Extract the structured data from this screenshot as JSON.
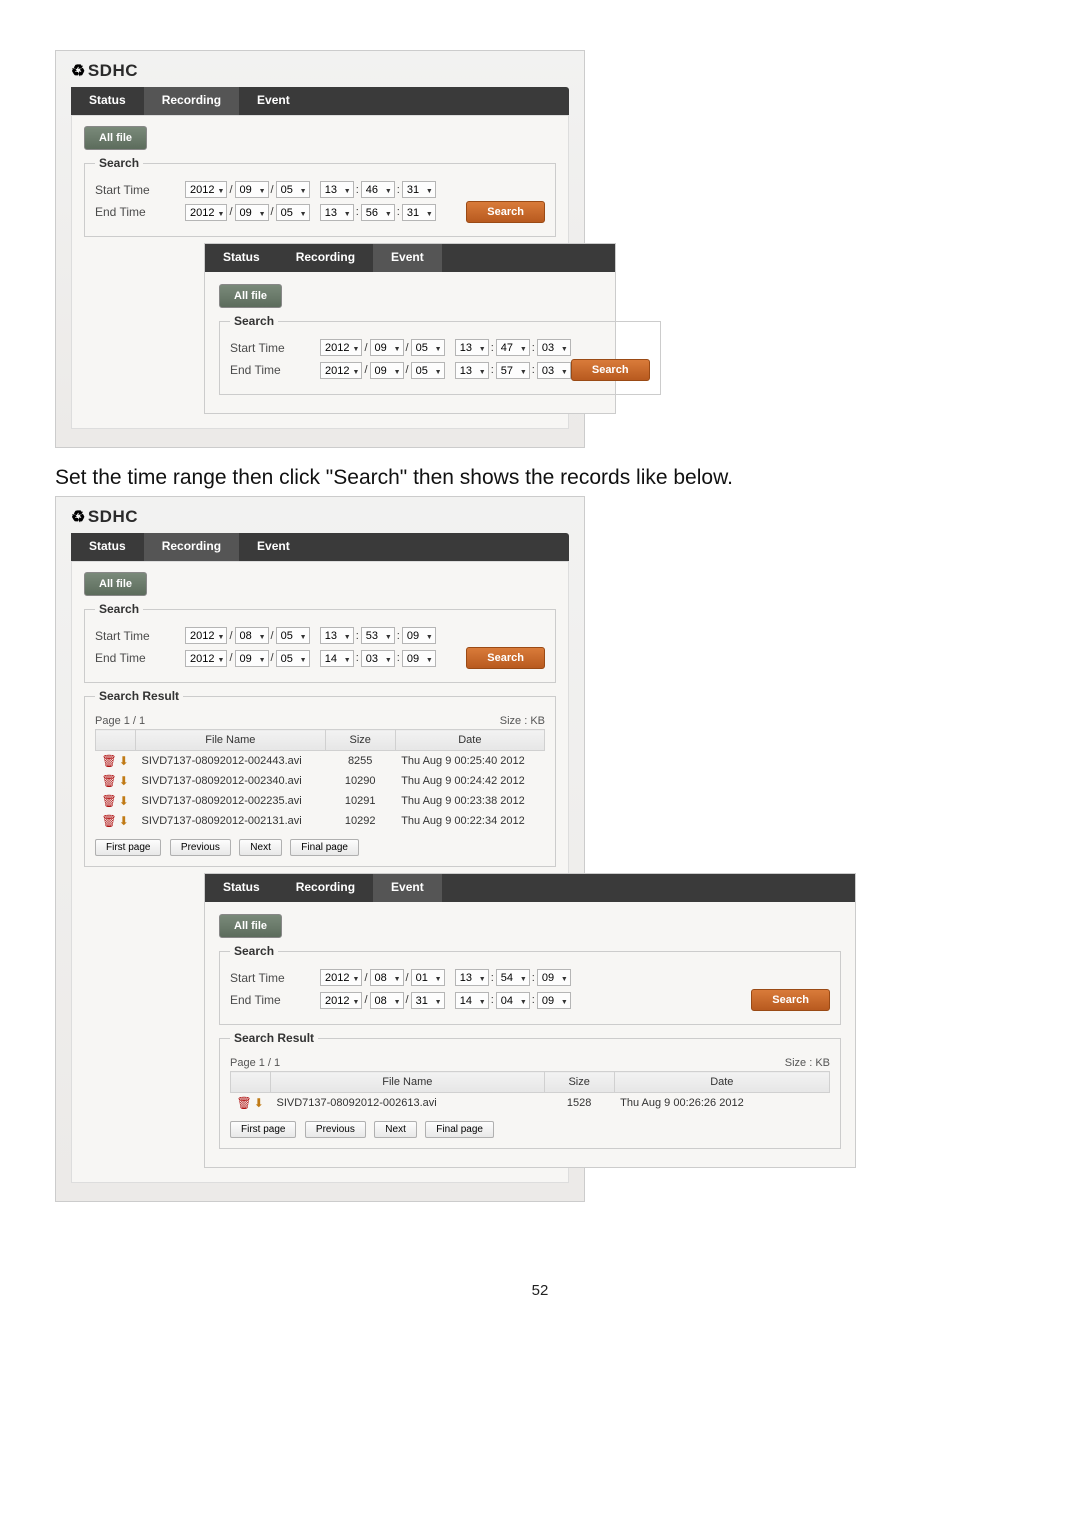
{
  "logo": "SDHC",
  "tabs": {
    "status": "Status",
    "recording": "Recording",
    "event": "Event"
  },
  "allfile_label": "All file",
  "search_legend": "Search",
  "start_label": "Start Time",
  "end_label": "End Time",
  "search_btn": "Search",
  "panel1": {
    "outer_start": {
      "y": "2012",
      "mo": "09",
      "d": "05",
      "h": "13",
      "mi": "46",
      "s": "31"
    },
    "outer_end": {
      "y": "2012",
      "mo": "09",
      "d": "05",
      "h": "13",
      "mi": "56",
      "s": "31"
    },
    "inner_start": {
      "y": "2012",
      "mo": "09",
      "d": "05",
      "h": "13",
      "mi": "47",
      "s": "03"
    },
    "inner_end": {
      "y": "2012",
      "mo": "09",
      "d": "05",
      "h": "13",
      "mi": "57",
      "s": "03"
    }
  },
  "instruction": "Set the time range then click \"Search\" then shows the records like below.",
  "panel2": {
    "outer_start": {
      "y": "2012",
      "mo": "08",
      "d": "05",
      "h": "13",
      "mi": "53",
      "s": "09"
    },
    "outer_end": {
      "y": "2012",
      "mo": "09",
      "d": "05",
      "h": "14",
      "mi": "03",
      "s": "09"
    },
    "inner_start": {
      "y": "2012",
      "mo": "08",
      "d": "01",
      "h": "13",
      "mi": "54",
      "s": "09"
    },
    "inner_end": {
      "y": "2012",
      "mo": "08",
      "d": "31",
      "h": "14",
      "mi": "04",
      "s": "09"
    }
  },
  "result_legend": "Search Result",
  "page_label": "Page 1 / 1",
  "size_label": "Size : KB",
  "cols": {
    "fname": "File Name",
    "size": "Size",
    "date": "Date"
  },
  "rows_outer": [
    {
      "f": "SIVD7137-08092012-002443.avi",
      "s": "8255",
      "d": "Thu Aug 9 00:25:40 2012"
    },
    {
      "f": "SIVD7137-08092012-002340.avi",
      "s": "10290",
      "d": "Thu Aug 9 00:24:42 2012"
    },
    {
      "f": "SIVD7137-08092012-002235.avi",
      "s": "10291",
      "d": "Thu Aug 9 00:23:38 2012"
    },
    {
      "f": "SIVD7137-08092012-002131.avi",
      "s": "10292",
      "d": "Thu Aug 9 00:22:34 2012"
    }
  ],
  "rows_inner": [
    {
      "f": "SIVD7137-08092012-002613.avi",
      "s": "1528",
      "d": "Thu Aug 9 00:26:26 2012"
    }
  ],
  "pager": {
    "first": "First page",
    "prev": "Previous",
    "next": "Next",
    "last": "Final page"
  },
  "page_number": "52"
}
